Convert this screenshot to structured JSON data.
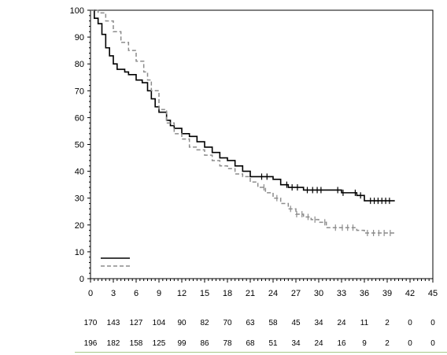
{
  "chart_data": {
    "type": "line",
    "title": "",
    "xlabel": "",
    "ylabel": "",
    "xlim": [
      0,
      45
    ],
    "ylim": [
      0,
      100
    ],
    "x_ticks": [
      0,
      3,
      6,
      9,
      12,
      15,
      18,
      21,
      24,
      27,
      30,
      33,
      36,
      39,
      42,
      45
    ],
    "y_ticks": [
      0,
      10,
      20,
      30,
      40,
      50,
      60,
      70,
      80,
      90,
      100
    ],
    "grid": false,
    "series": [
      {
        "style": "solid",
        "color": "#000000",
        "points": [
          [
            0,
            100
          ],
          [
            0.5,
            97
          ],
          [
            1,
            95
          ],
          [
            1.5,
            91
          ],
          [
            2,
            86
          ],
          [
            2.5,
            83
          ],
          [
            3,
            80
          ],
          [
            3.5,
            78
          ],
          [
            4.5,
            77
          ],
          [
            5,
            76
          ],
          [
            6,
            74
          ],
          [
            6.8,
            73
          ],
          [
            7.5,
            70
          ],
          [
            8,
            67
          ],
          [
            8.5,
            64
          ],
          [
            9,
            62
          ],
          [
            10,
            59
          ],
          [
            10.5,
            57
          ],
          [
            11,
            56
          ],
          [
            12,
            54
          ],
          [
            13,
            53
          ],
          [
            14,
            51
          ],
          [
            15,
            49
          ],
          [
            16,
            47
          ],
          [
            17,
            45
          ],
          [
            18,
            44
          ],
          [
            19,
            42
          ],
          [
            20,
            40
          ],
          [
            21,
            38
          ],
          [
            22,
            38
          ],
          [
            23,
            38
          ],
          [
            24,
            37
          ],
          [
            25,
            35
          ],
          [
            26,
            34
          ],
          [
            27,
            34
          ],
          [
            28,
            33
          ],
          [
            29,
            33
          ],
          [
            30,
            33
          ],
          [
            31,
            33
          ],
          [
            32,
            33
          ],
          [
            33,
            32
          ],
          [
            34,
            32
          ],
          [
            35,
            31
          ],
          [
            35.5,
            31
          ],
          [
            36,
            29
          ],
          [
            37,
            29
          ],
          [
            38,
            29
          ],
          [
            39,
            29
          ],
          [
            40,
            29
          ]
        ],
        "censor_x": [
          22.5,
          23.2,
          25.8,
          26.5,
          27.2,
          28.5,
          29.2,
          29.8,
          30.3,
          32.5,
          33.2,
          34.8,
          35.5,
          36.8,
          37.3,
          37.8,
          38.3,
          38.8,
          39.3
        ]
      },
      {
        "style": "dashed",
        "color": "#8c8c8c",
        "points": [
          [
            0,
            100
          ],
          [
            1,
            99
          ],
          [
            2,
            96
          ],
          [
            3,
            92
          ],
          [
            4,
            88
          ],
          [
            5,
            85
          ],
          [
            6,
            81
          ],
          [
            7,
            77
          ],
          [
            7.5,
            74
          ],
          [
            8,
            70
          ],
          [
            9,
            63
          ],
          [
            10,
            58
          ],
          [
            11,
            54
          ],
          [
            12,
            52
          ],
          [
            13,
            49
          ],
          [
            14,
            48
          ],
          [
            15,
            46
          ],
          [
            16,
            44
          ],
          [
            17,
            42
          ],
          [
            18,
            41
          ],
          [
            19,
            39
          ],
          [
            20,
            38
          ],
          [
            21,
            36
          ],
          [
            22,
            34
          ],
          [
            23,
            32
          ],
          [
            24,
            30
          ],
          [
            25,
            28
          ],
          [
            26,
            26
          ],
          [
            27,
            24
          ],
          [
            28,
            23
          ],
          [
            29,
            22
          ],
          [
            30,
            21
          ],
          [
            31,
            19
          ],
          [
            32,
            19
          ],
          [
            33,
            19
          ],
          [
            34,
            19
          ],
          [
            35,
            18
          ],
          [
            36,
            17
          ],
          [
            37,
            17
          ],
          [
            38,
            17
          ],
          [
            39,
            17
          ],
          [
            40,
            17
          ]
        ],
        "censor_x": [
          22.8,
          24.5,
          26.3,
          27.1,
          27.8,
          28.6,
          29.5,
          30.8,
          32.2,
          33.1,
          33.8,
          34.5,
          36.4,
          37.2,
          37.9,
          38.6,
          39.4
        ]
      }
    ],
    "legend": {
      "position": "bottom-left",
      "entries": [
        "",
        ""
      ]
    },
    "risk_table": {
      "x": [
        0,
        3,
        6,
        9,
        12,
        15,
        18,
        21,
        24,
        27,
        30,
        33,
        36,
        39,
        42,
        45
      ],
      "rows": [
        [
          "170",
          "143",
          "127",
          "104",
          "90",
          "82",
          "70",
          "63",
          "58",
          "45",
          "34",
          "24",
          "11",
          "2",
          "0",
          "0"
        ],
        [
          "196",
          "182",
          "158",
          "125",
          "99",
          "86",
          "78",
          "68",
          "51",
          "34",
          "24",
          "16",
          "9",
          "2",
          "0",
          "0"
        ]
      ]
    }
  }
}
